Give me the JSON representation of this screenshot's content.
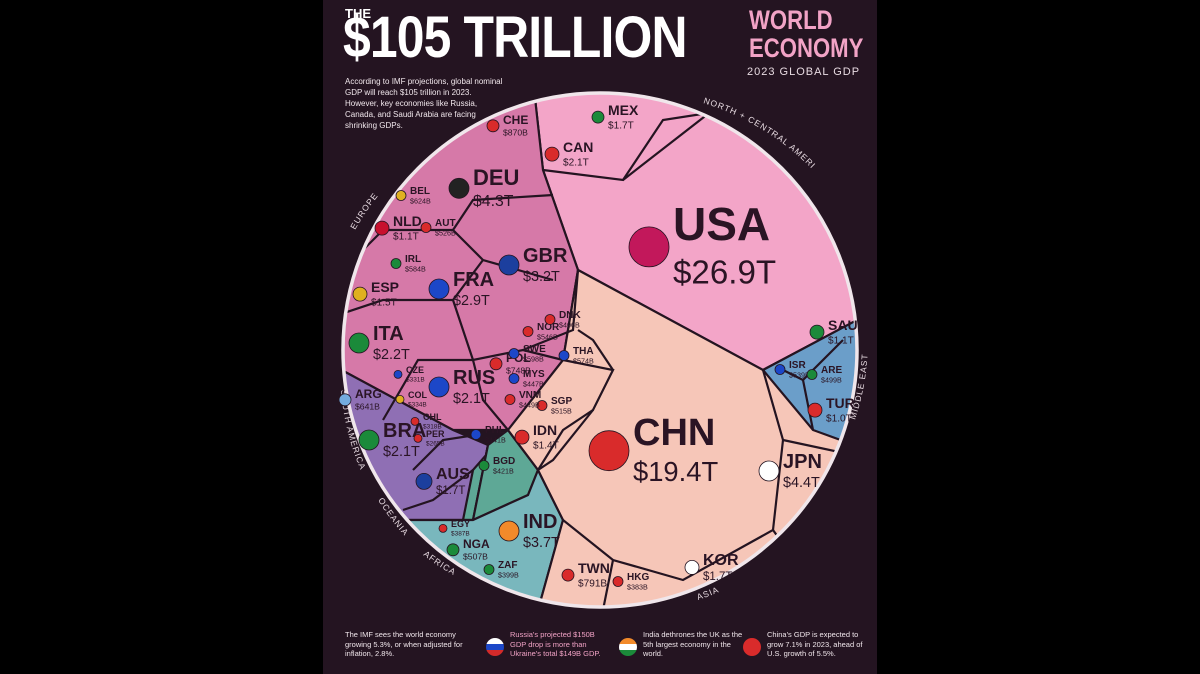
{
  "title": {
    "the": "THE",
    "main": "$105 TRILLION",
    "line1": "WORLD",
    "line2": "ECONOMY",
    "subtitle": "2023 GLOBAL GDP"
  },
  "intro": "According to IMF projections, global nominal GDP will reach $105 trillion in 2023. However, key economies like Russia, Canada, and Saudi Arabia are facing shrinking GDPs.",
  "region_labels": [
    "NORTH + CENTRAL AMERICA",
    "EUROPE",
    "SOUTH AMERICA",
    "OCEANIA",
    "AFRICA",
    "ASIA",
    "MIDDLE EAST"
  ],
  "colors": {
    "north_america": "#f3a5c8",
    "europe": "#d679a8",
    "south_america": "#8f6fb4",
    "oceania": "#5ea896",
    "africa": "#79b7bd",
    "asia": "#f6c6b8",
    "middle_east": "#6b9ec9",
    "background": "#241421",
    "title_accent": "#f2a3c6"
  },
  "chart_data": {
    "type": "voronoi-treemap",
    "title": "$105 TRILLION WORLD ECONOMY",
    "subtitle": "2023 GLOBAL GDP",
    "units": "USD",
    "items": [
      {
        "code": "USA",
        "value": "$26.9T",
        "region": "North + Central America",
        "flag": "us-flag-icon"
      },
      {
        "code": "CHN",
        "value": "$19.4T",
        "region": "Asia",
        "flag": "cn-flag-icon"
      },
      {
        "code": "JPN",
        "value": "$4.4T",
        "region": "Asia",
        "flag": "jp-flag-icon"
      },
      {
        "code": "DEU",
        "value": "$4.3T",
        "region": "Europe",
        "flag": "de-flag-icon"
      },
      {
        "code": "IND",
        "value": "$3.7T",
        "region": "Asia",
        "flag": "in-flag-icon"
      },
      {
        "code": "GBR",
        "value": "$3.2T",
        "region": "Europe",
        "flag": "gb-flag-icon"
      },
      {
        "code": "FRA",
        "value": "$2.9T",
        "region": "Europe",
        "flag": "fr-flag-icon"
      },
      {
        "code": "ITA",
        "value": "$2.2T",
        "region": "Europe",
        "flag": "it-flag-icon"
      },
      {
        "code": "CAN",
        "value": "$2.1T",
        "region": "North + Central America",
        "flag": "ca-flag-icon"
      },
      {
        "code": "BRA",
        "value": "$2.1T",
        "region": "South America",
        "flag": "br-flag-icon"
      },
      {
        "code": "RUS",
        "value": "$2.1T",
        "region": "Europe",
        "flag": "ru-flag-icon"
      },
      {
        "code": "MEX",
        "value": "$1.7T",
        "region": "North + Central America",
        "flag": "mx-flag-icon"
      },
      {
        "code": "KOR",
        "value": "$1.7T",
        "region": "Asia",
        "flag": "kr-flag-icon"
      },
      {
        "code": "AUS",
        "value": "$1.7T",
        "region": "Oceania",
        "flag": "au-flag-icon"
      },
      {
        "code": "ESP",
        "value": "$1.5T",
        "region": "Europe",
        "flag": "es-flag-icon"
      },
      {
        "code": "IDN",
        "value": "$1.4T",
        "region": "Asia",
        "flag": "id-flag-icon"
      },
      {
        "code": "NLD",
        "value": "$1.1T",
        "region": "Europe",
        "flag": "nl-flag-icon"
      },
      {
        "code": "SAU",
        "value": "$1.1T",
        "region": "Middle East",
        "flag": "sa-flag-icon"
      },
      {
        "code": "TUR",
        "value": "$1.0T",
        "region": "Middle East",
        "flag": "tr-flag-icon"
      },
      {
        "code": "CHE",
        "value": "$870B",
        "region": "Europe",
        "flag": "ch-flag-icon"
      },
      {
        "code": "TWN",
        "value": "$791B",
        "region": "Asia",
        "flag": "tw-flag-icon"
      },
      {
        "code": "POL",
        "value": "$748B",
        "region": "Europe",
        "flag": "pl-flag-icon"
      },
      {
        "code": "BEL",
        "value": "$624B",
        "region": "Europe",
        "flag": "be-flag-icon"
      },
      {
        "code": "ARG",
        "value": "$641B",
        "region": "South America",
        "flag": "ar-flag-icon"
      },
      {
        "code": "SWE",
        "value": "$598B",
        "region": "Europe",
        "flag": "se-flag-icon"
      },
      {
        "code": "IRL",
        "value": "$584B",
        "region": "Europe",
        "flag": "ie-flag-icon"
      },
      {
        "code": "THA",
        "value": "$574B",
        "region": "Asia",
        "flag": "th-flag-icon"
      },
      {
        "code": "AUT",
        "value": "$526B",
        "region": "Europe",
        "flag": "at-flag-icon"
      },
      {
        "code": "NGA",
        "value": "$507B",
        "region": "Africa",
        "flag": "ng-flag-icon"
      },
      {
        "code": "ISR",
        "value": "$539B",
        "region": "Middle East",
        "flag": "il-flag-icon"
      },
      {
        "code": "ARE",
        "value": "$499B",
        "region": "Middle East",
        "flag": "ae-flag-icon"
      },
      {
        "code": "SGP",
        "value": "$515B",
        "region": "Asia",
        "flag": "sg-flag-icon"
      },
      {
        "code": "NOR",
        "value": "$546B",
        "region": "Europe",
        "flag": "no-flag-icon"
      },
      {
        "code": "DNK",
        "value": "$406B",
        "region": "Europe",
        "flag": "dk-flag-icon"
      },
      {
        "code": "MYS",
        "value": "$447B",
        "region": "Asia",
        "flag": "my-flag-icon"
      },
      {
        "code": "VNM",
        "value": "$449B",
        "region": "Asia",
        "flag": "vn-flag-icon"
      },
      {
        "code": "PHL",
        "value": "$441B",
        "region": "Asia",
        "flag": "ph-flag-icon"
      },
      {
        "code": "BGD",
        "value": "$421B",
        "region": "Asia",
        "flag": "bd-flag-icon"
      },
      {
        "code": "HKG",
        "value": "$383B",
        "region": "Asia",
        "flag": "hk-flag-icon"
      },
      {
        "code": "ZAF",
        "value": "$399B",
        "region": "Africa",
        "flag": "za-flag-icon"
      },
      {
        "code": "EGY",
        "value": "$387B",
        "region": "Africa",
        "flag": "eg-flag-icon"
      },
      {
        "code": "COL",
        "value": "$334B",
        "region": "South America",
        "flag": "co-flag-icon"
      },
      {
        "code": "CHL",
        "value": "$318B",
        "region": "South America",
        "flag": "cl-flag-icon"
      },
      {
        "code": "PER",
        "value": "$265B",
        "region": "South America",
        "flag": "pe-flag-icon"
      },
      {
        "code": "CZE",
        "value": "$331B",
        "region": "Europe",
        "flag": "cz-flag-icon"
      }
    ]
  },
  "footer": [
    {
      "text": "The IMF sees the world economy growing 5.3%, or when adjusted for inflation, 2.8%.",
      "flag": ""
    },
    {
      "text": "Russia's projected $150B GDP drop is more than Ukraine's total $149B GDP.",
      "flag": "ru-flag-icon"
    },
    {
      "text": "India dethrones the UK as the 5th largest economy in the world.",
      "flag": "in-flag-icon"
    },
    {
      "text": "China's GDP is expected to grow 7.1% in 2023, ahead of U.S. growth of 5.5%.",
      "flag": "cn-flag-icon"
    }
  ]
}
